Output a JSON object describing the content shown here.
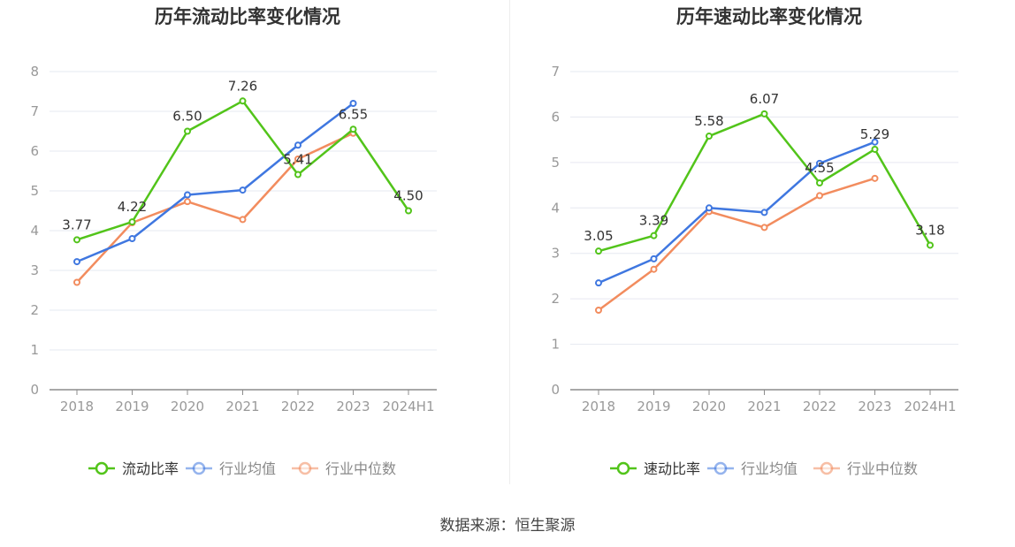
{
  "source_text": "数据来源：恒生聚源",
  "colors": {
    "company": "#52c41a",
    "industry_avg": "#3f77e0",
    "industry_median": "#f28c5e",
    "axis": "#999999",
    "grid": "#e6e8f0",
    "label": "#333333"
  },
  "chart_data": [
    {
      "type": "line",
      "title": "历年流动比率变化情况",
      "categories": [
        "2018",
        "2019",
        "2020",
        "2021",
        "2022",
        "2023",
        "2024H1"
      ],
      "ylim": [
        0,
        8
      ],
      "yticks": [
        "0",
        "1",
        "2",
        "3",
        "4",
        "5",
        "6",
        "7",
        "8"
      ],
      "legend_position": "bottom-center",
      "grid": true,
      "series": [
        {
          "name": "流动比率",
          "color": "#52c41a",
          "values": [
            3.77,
            4.22,
            6.5,
            7.26,
            5.41,
            6.55,
            4.5
          ],
          "labels": [
            "3.77",
            "4.22",
            "6.50",
            "7.26",
            "5.41",
            "6.55",
            "4.50"
          ]
        },
        {
          "name": "行业均值",
          "color": "#3f77e0",
          "values": [
            3.22,
            3.8,
            4.9,
            5.02,
            6.15,
            7.2,
            null
          ]
        },
        {
          "name": "行业中位数",
          "color": "#f28c5e",
          "values": [
            2.7,
            4.2,
            4.73,
            4.28,
            5.8,
            6.45,
            null
          ]
        }
      ]
    },
    {
      "type": "line",
      "title": "历年速动比率变化情况",
      "categories": [
        "2018",
        "2019",
        "2020",
        "2021",
        "2022",
        "2023",
        "2024H1"
      ],
      "ylim": [
        0,
        7
      ],
      "yticks": [
        "0",
        "1",
        "2",
        "3",
        "4",
        "5",
        "6",
        "7"
      ],
      "legend_position": "bottom-center",
      "grid": true,
      "series": [
        {
          "name": "速动比率",
          "color": "#52c41a",
          "values": [
            3.05,
            3.39,
            5.58,
            6.07,
            4.55,
            5.29,
            3.18
          ],
          "labels": [
            "3.05",
            "3.39",
            "5.58",
            "6.07",
            "4.55",
            "5.29",
            "3.18"
          ]
        },
        {
          "name": "行业均值",
          "color": "#3f77e0",
          "values": [
            2.35,
            2.88,
            4.0,
            3.9,
            4.98,
            5.45,
            null
          ]
        },
        {
          "name": "行业中位数",
          "color": "#f28c5e",
          "values": [
            1.75,
            2.65,
            3.92,
            3.57,
            4.27,
            4.65,
            null
          ]
        }
      ]
    }
  ]
}
